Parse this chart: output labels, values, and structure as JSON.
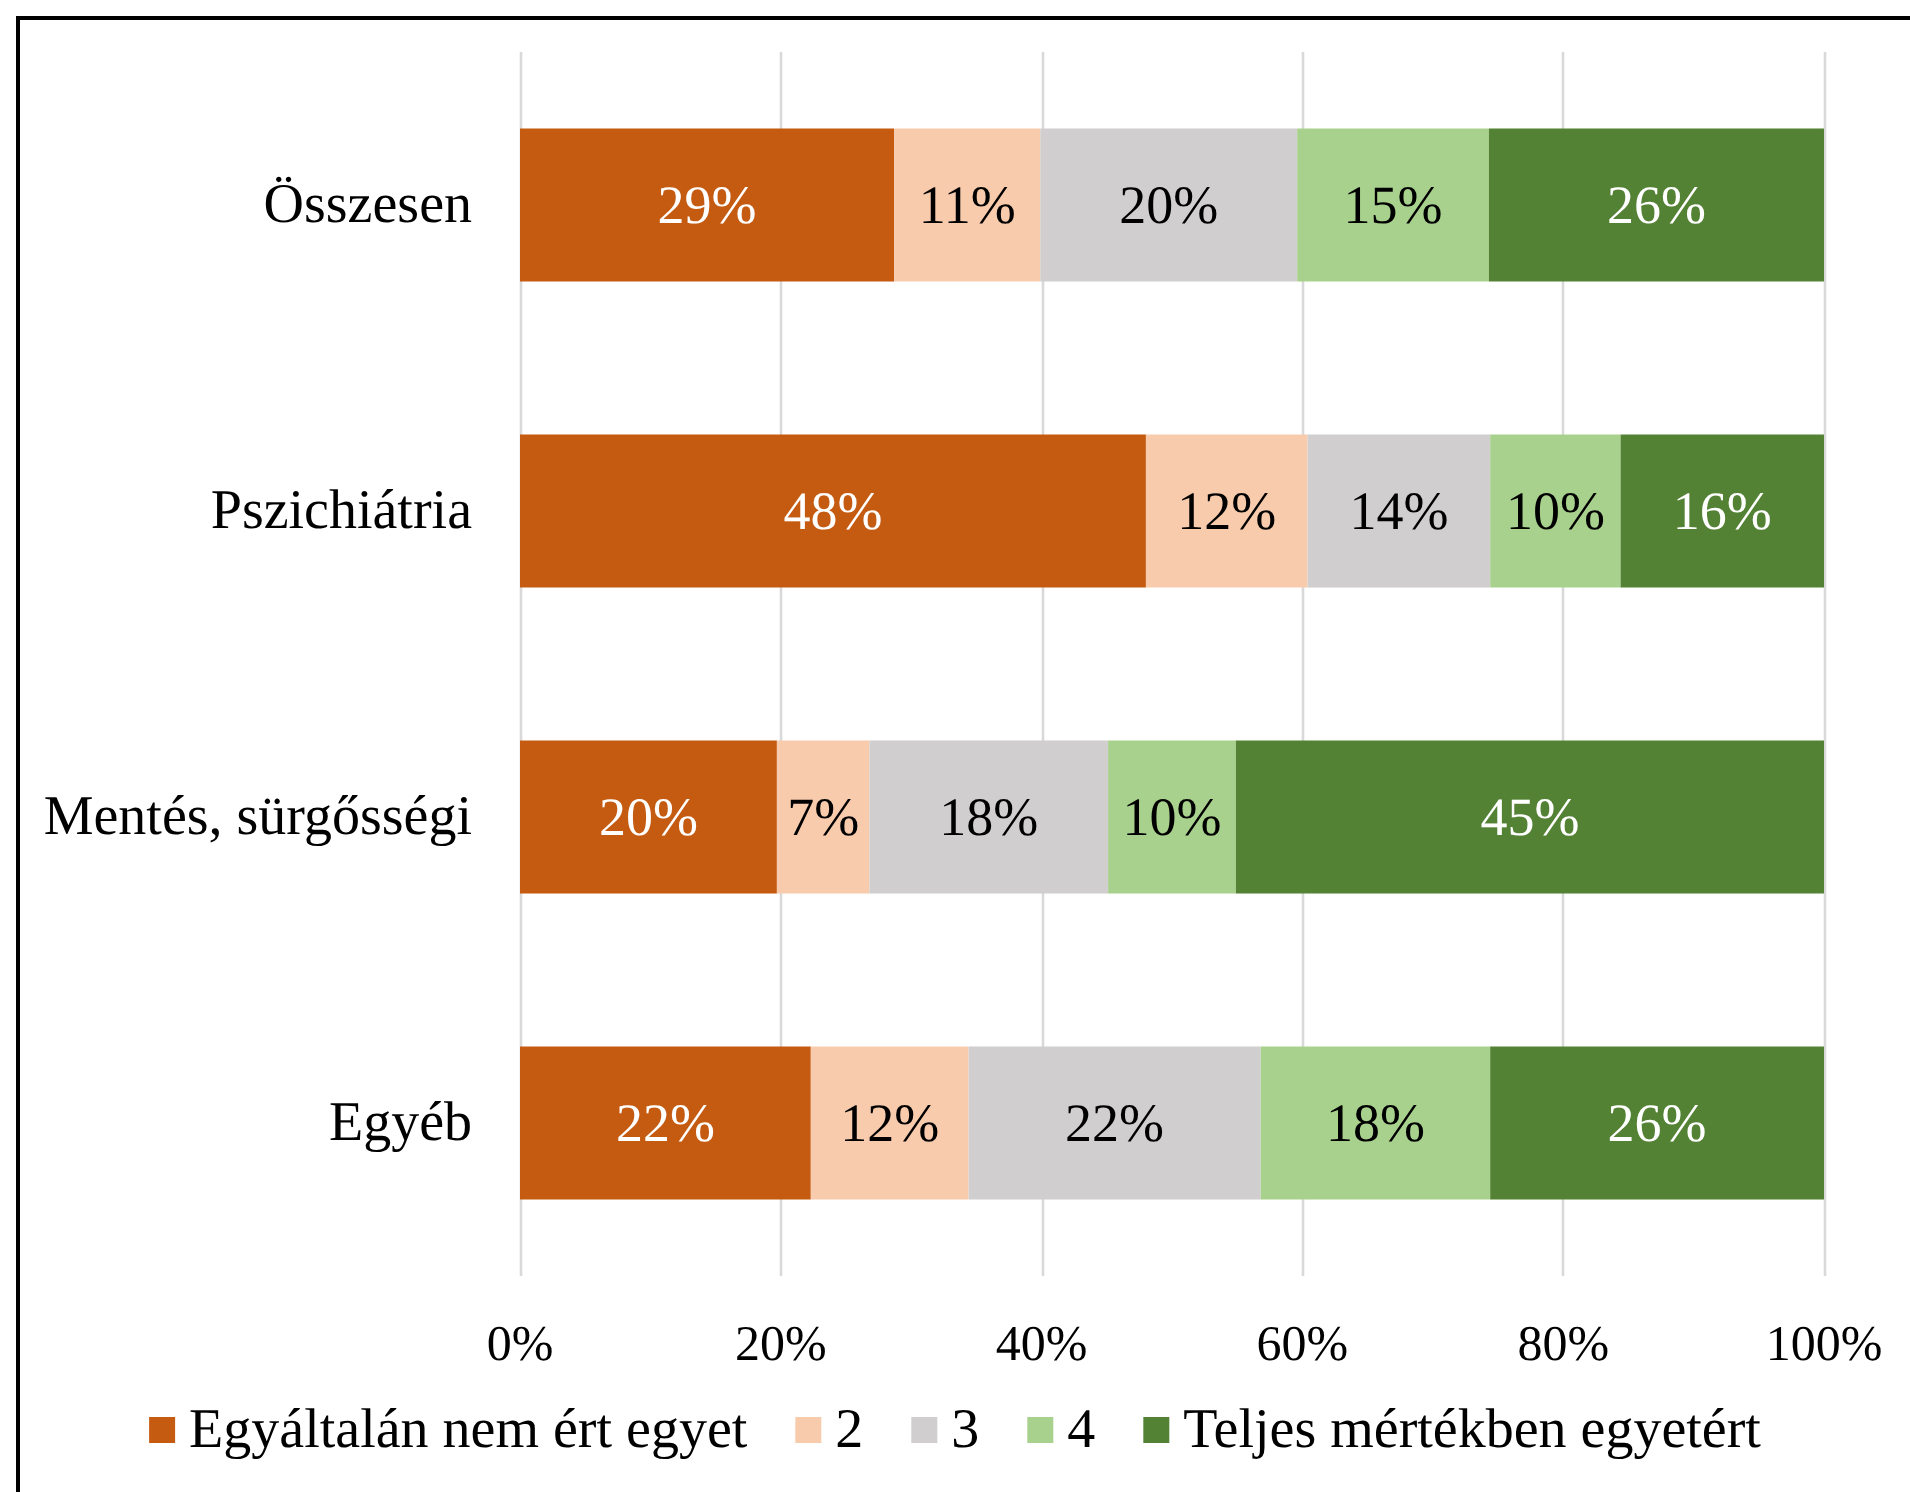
{
  "chart_data": {
    "type": "bar",
    "orientation": "horizontal",
    "stacked": true,
    "categories": [
      "Összesen",
      "Pszichiátria",
      "Mentés, sürgősségi",
      "Egyéb"
    ],
    "series": [
      {
        "name": "Egyáltalán nem ért egyet",
        "color": "#c55a11",
        "values": [
          28.7,
          48.0,
          19.7,
          22.3
        ],
        "value_labels": [
          "29%",
          "48%",
          "20%",
          "22%"
        ]
      },
      {
        "name": "2",
        "color": "#f8cbad",
        "values": [
          11.2,
          12.4,
          7.1,
          12.1
        ],
        "value_labels": [
          "11%",
          "12%",
          "7%",
          "12%"
        ]
      },
      {
        "name": "3",
        "color": "#d0cece",
        "values": [
          19.7,
          14.0,
          18.3,
          22.4
        ],
        "value_labels": [
          "20%",
          "14%",
          "18%",
          "22%"
        ]
      },
      {
        "name": "4",
        "color": "#a9d18e",
        "values": [
          14.7,
          10.0,
          9.8,
          17.6
        ],
        "value_labels": [
          "15%",
          "10%",
          "10%",
          "18%"
        ]
      },
      {
        "name": "Teljes mértékben egyetért",
        "color": "#548235",
        "values": [
          25.7,
          15.6,
          45.1,
          25.6
        ],
        "value_labels": [
          "26%",
          "16%",
          "45%",
          "26%"
        ]
      }
    ],
    "xlim": [
      0,
      100
    ],
    "xticks": [
      {
        "value": 0,
        "label": "0%"
      },
      {
        "value": 20,
        "label": "20%"
      },
      {
        "value": 40,
        "label": "40%"
      },
      {
        "value": 60,
        "label": "60%"
      },
      {
        "value": 80,
        "label": "80%"
      },
      {
        "value": 100,
        "label": "100%"
      }
    ],
    "grid": "x",
    "legend": "bottom"
  }
}
